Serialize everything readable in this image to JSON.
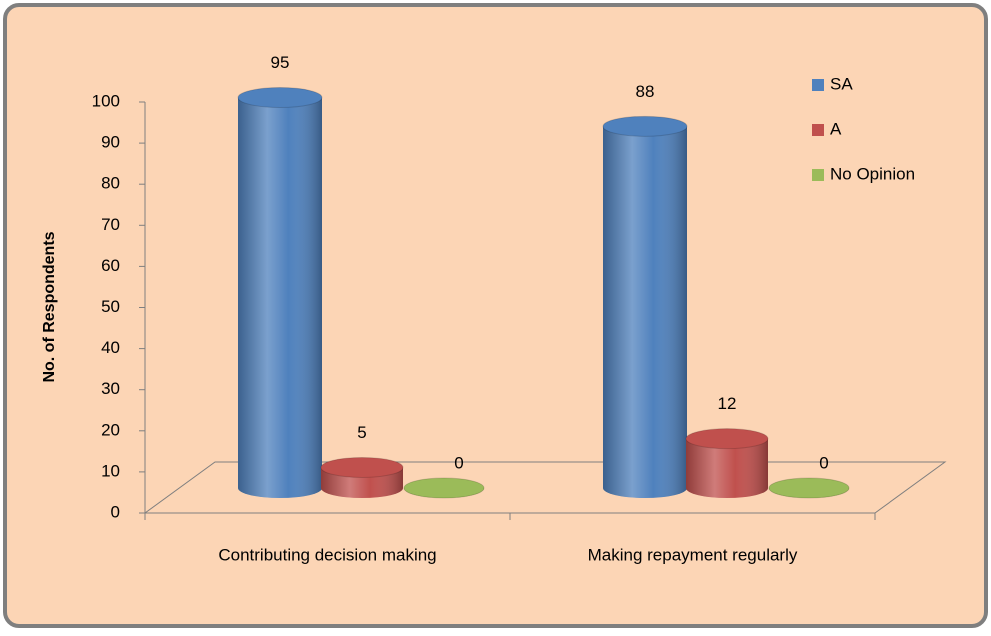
{
  "chart_data": {
    "type": "bar3d",
    "y_axis_label": "No. of Respondents",
    "categories": [
      "Contributing decision making",
      "Making repayment regularly"
    ],
    "series": [
      {
        "name": "SA",
        "color": "#4f81bd",
        "values": [
          95,
          88
        ]
      },
      {
        "name": "A",
        "color": "#c0504d",
        "values": [
          5,
          12
        ]
      },
      {
        "name": "No Opinion",
        "color": "#9bbb59",
        "values": [
          0,
          0
        ]
      }
    ],
    "ylim": [
      0,
      100
    ],
    "yticks": [
      0,
      10,
      20,
      30,
      40,
      50,
      60,
      70,
      80,
      90,
      100
    ],
    "legend": "right"
  }
}
